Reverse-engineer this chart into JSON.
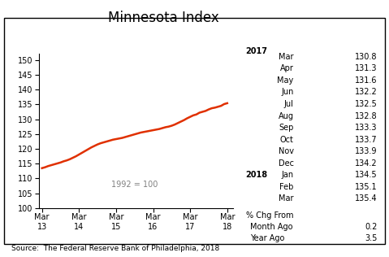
{
  "title": "Minnesota Index",
  "source": "Source:  The Federal Reserve Bank of Philadelphia, 2018",
  "annotation": "1992 = 100",
  "x_labels": [
    "Mar\n13",
    "Mar\n14",
    "Mar\n15",
    "Mar\n16",
    "Mar\n17",
    "Mar\n18"
  ],
  "x_positions": [
    0,
    12,
    24,
    36,
    48,
    60
  ],
  "ylim": [
    100,
    152
  ],
  "yticks": [
    100,
    105,
    110,
    115,
    120,
    125,
    130,
    135,
    140,
    145,
    150
  ],
  "line_color": "#e03000",
  "line_width": 1.8,
  "data_x": [
    0,
    1,
    2,
    3,
    4,
    5,
    6,
    7,
    8,
    9,
    10,
    11,
    12,
    13,
    14,
    15,
    16,
    17,
    18,
    19,
    20,
    21,
    22,
    23,
    24,
    25,
    26,
    27,
    28,
    29,
    30,
    31,
    32,
    33,
    34,
    35,
    36,
    37,
    38,
    39,
    40,
    41,
    42,
    43,
    44,
    45,
    46,
    47,
    48,
    49,
    50,
    51,
    52,
    53,
    54,
    55,
    56,
    57,
    58,
    59,
    60
  ],
  "data_y": [
    113.5,
    113.8,
    114.2,
    114.5,
    114.8,
    115.1,
    115.4,
    115.8,
    116.1,
    116.5,
    117.0,
    117.5,
    118.1,
    118.7,
    119.3,
    119.9,
    120.5,
    121.0,
    121.5,
    121.9,
    122.2,
    122.5,
    122.8,
    123.1,
    123.3,
    123.5,
    123.7,
    124.0,
    124.3,
    124.6,
    124.9,
    125.2,
    125.5,
    125.7,
    125.9,
    126.1,
    126.3,
    126.5,
    126.7,
    127.0,
    127.3,
    127.5,
    127.8,
    128.2,
    128.7,
    129.2,
    129.7,
    130.3,
    130.8,
    131.3,
    131.6,
    132.2,
    132.5,
    132.8,
    133.3,
    133.7,
    133.9,
    134.2,
    134.5,
    135.1,
    135.4
  ],
  "legend_year1": "2017",
  "legend_year2": "2018",
  "legend_entries": [
    [
      "Mar",
      "130.8"
    ],
    [
      "Apr",
      "131.3"
    ],
    [
      "May",
      "131.6"
    ],
    [
      "Jun",
      "132.2"
    ],
    [
      "Jul",
      "132.5"
    ],
    [
      "Aug",
      "132.8"
    ],
    [
      "Sep",
      "133.3"
    ],
    [
      "Oct",
      "133.7"
    ],
    [
      "Nov",
      "133.9"
    ],
    [
      "Dec",
      "134.2"
    ],
    [
      "Jan",
      "134.5"
    ],
    [
      "Feb",
      "135.1"
    ],
    [
      "Mar",
      "135.4"
    ]
  ],
  "pct_chg_label": "% Chg From",
  "month_ago_label": "Month Ago",
  "month_ago_val": "0.2",
  "year_ago_label": "Year Ago",
  "year_ago_val": "3.5",
  "background_color": "#ffffff"
}
